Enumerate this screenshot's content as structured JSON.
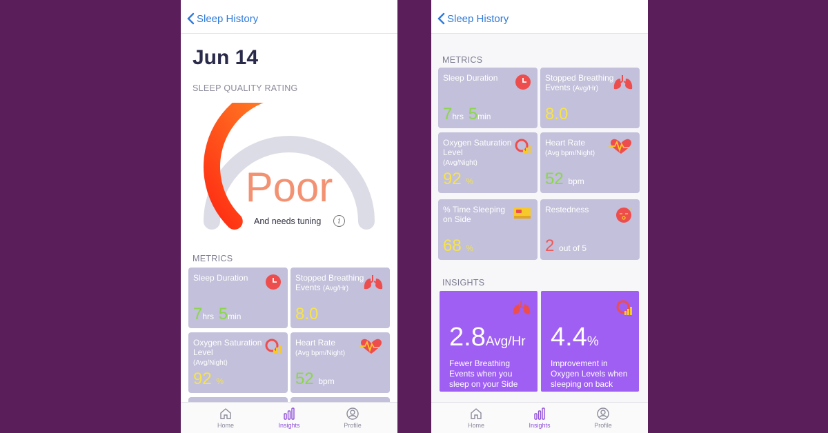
{
  "colors": {
    "background": "#5a1f5a",
    "accent": "#8f4fd8",
    "card": "#c2c0da",
    "insight_card": "#9f5ff2",
    "good": "#8bd64a",
    "warn": "#f7e34a",
    "bad": "#ee5a5a"
  },
  "left": {
    "back_label": "Sleep History",
    "date": "Jun 14",
    "quality_heading": "SLEEP QUALITY RATING",
    "rating": "Poor",
    "rating_sub": "And needs tuning",
    "rating_level": 0.55,
    "metrics_heading": "METRICS",
    "cards": [
      {
        "label": "Sleep Duration",
        "value_a": "7",
        "unit_a": "hrs",
        "value_b": "5",
        "unit_b": "min",
        "icon": "clock-icon"
      },
      {
        "label": "Stopped Breathing Events",
        "label_small": "(Avg/Hr)",
        "value": "8.0",
        "icon": "lungs-icon"
      },
      {
        "label": "Oxygen Saturation Level",
        "label_small": "(Avg/Night)",
        "value": "92",
        "unit": "%",
        "icon": "oxygen-icon"
      },
      {
        "label": "Heart Rate",
        "label_small": "(Avg bpm/Night)",
        "value": "52",
        "unit": "bpm",
        "icon": "heart-rate-icon"
      }
    ]
  },
  "right": {
    "back_label": "Sleep History",
    "metrics_heading": "METRICS",
    "cards": [
      {
        "label": "Sleep Duration",
        "value_a": "7",
        "unit_a": "hrs",
        "value_b": "5",
        "unit_b": "min",
        "icon": "clock-icon"
      },
      {
        "label": "Stopped Breathing Events",
        "label_small": "(Avg/Hr)",
        "value": "8.0",
        "icon": "lungs-icon"
      },
      {
        "label": "Oxygen Saturation Level",
        "label_small": "(Avg/Night)",
        "value": "92",
        "unit": "%",
        "icon": "oxygen-icon"
      },
      {
        "label": "Heart Rate",
        "label_small": "(Avg bpm/Night)",
        "value": "52",
        "unit": "bpm",
        "icon": "heart-rate-icon"
      },
      {
        "label": "% Time Sleeping on Side",
        "value": "68",
        "unit": "%",
        "icon": "bed-icon"
      },
      {
        "label": "Restedness",
        "value": "2",
        "unit": "out of 5",
        "icon": "sleepy-face-icon"
      }
    ],
    "insights_heading": "INSIGHTS",
    "insights": [
      {
        "value": "2.8",
        "unit": "Avg/Hr",
        "desc": "Fewer Breathing Events when you sleep on your Side",
        "icon": "lungs-icon"
      },
      {
        "value": "4.4",
        "unit": "%",
        "desc": "Improvement in Oxygen Levels when sleeping on back",
        "icon": "oxygen-icon"
      }
    ]
  },
  "tabs": [
    {
      "label": "Home",
      "icon": "home-icon",
      "active": false
    },
    {
      "label": "Insights",
      "icon": "bar-chart-icon",
      "active": true
    },
    {
      "label": "Profile",
      "icon": "profile-icon",
      "active": false
    }
  ]
}
